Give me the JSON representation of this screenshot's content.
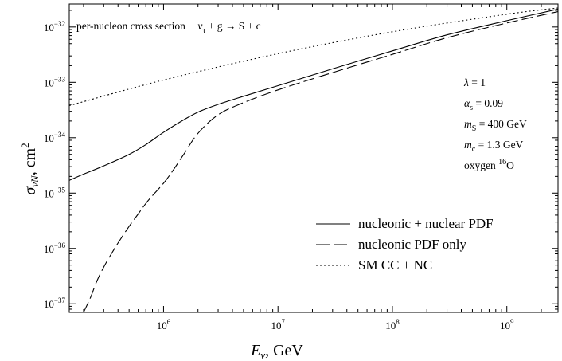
{
  "chart_data": {
    "type": "line",
    "title": "",
    "xlabel": "E_ν, GeV",
    "ylabel": "σ_νN, cm²",
    "x_scale": "log",
    "y_scale": "log",
    "xlim": [
      150000,
      2800000000
    ],
    "ylim": [
      7e-38,
      2.6e-32
    ],
    "grid": false,
    "legend_position": "lower-right",
    "x_ticks": [
      {
        "value": 1000000,
        "base": "10",
        "exp": "6"
      },
      {
        "value": 10000000,
        "base": "10",
        "exp": "7"
      },
      {
        "value": 100000000,
        "base": "10",
        "exp": "8"
      },
      {
        "value": 1000000000,
        "base": "10",
        "exp": "9"
      }
    ],
    "y_ticks": [
      {
        "value": 1e-37,
        "base": "10",
        "exp": "−37"
      },
      {
        "value": 1e-36,
        "base": "10",
        "exp": "−36"
      },
      {
        "value": 1e-35,
        "base": "10",
        "exp": "−35"
      },
      {
        "value": 1e-34,
        "base": "10",
        "exp": "−34"
      },
      {
        "value": 1e-33,
        "base": "10",
        "exp": "−33"
      },
      {
        "value": 1e-32,
        "base": "10",
        "exp": "−32"
      }
    ],
    "series": [
      {
        "name": "nucleonic + nuclear PDF",
        "style": "solid",
        "color": "#000000",
        "x": [
          150000,
          200000,
          300000,
          500000,
          700000,
          1000000,
          1500000,
          2000000,
          3000000,
          5000000,
          10000000,
          30000000,
          100000000,
          300000000,
          1000000000,
          2800000000
        ],
        "y": [
          1.7e-35,
          2.2e-35,
          3.1e-35,
          5e-35,
          7.5e-35,
          1.25e-34,
          2.1e-34,
          2.9e-34,
          4e-34,
          5.6e-34,
          8.7e-34,
          1.75e-33,
          3.7e-33,
          7.2e-33,
          1.3e-32,
          2.1e-32
        ]
      },
      {
        "name": "nucleonic PDF only",
        "style": "dashed",
        "color": "#000000",
        "x": [
          200000,
          230000,
          260000,
          300000,
          350000,
          400000,
          500000,
          600000,
          700000,
          800000,
          1000000,
          1200000,
          1500000,
          2000000,
          3000000,
          5000000,
          10000000,
          30000000,
          100000000,
          300000000,
          1000000000,
          2800000000
        ],
        "y": [
          7e-38,
          1.3e-37,
          2.5e-37,
          4.6e-37,
          8e-37,
          1.25e-36,
          2.5e-36,
          4.2e-36,
          6.5e-36,
          9e-36,
          1.5e-35,
          2.5e-35,
          5e-35,
          1.2e-34,
          2.6e-34,
          4.3e-34,
          7.3e-34,
          1.5e-33,
          3.2e-33,
          6.4e-33,
          1.18e-32,
          1.9e-32
        ]
      },
      {
        "name": "SM CC + NC",
        "style": "dotted",
        "color": "#000000",
        "x": [
          150000,
          1000000,
          10000000,
          100000000,
          1000000000,
          2800000000
        ],
        "y": [
          3.8e-34,
          1.1e-33,
          3.3e-33,
          8.2e-33,
          1.7e-32,
          2.2e-32
        ]
      }
    ],
    "annotations": {
      "top_left": {
        "prefix": "per-nucleon cross section",
        "process": "ν",
        "process_sub": "τ",
        "process_rest": " + g → S + c"
      },
      "params": [
        {
          "sym": "λ",
          "sub": "",
          "sup": "",
          "text": " = 1"
        },
        {
          "sym": "α",
          "sub": "s",
          "sup": "",
          "text": " = 0.09"
        },
        {
          "sym": "m",
          "sub": "S",
          "sup": "",
          "text": " = 400 GeV"
        },
        {
          "sym": "m",
          "sub": "c",
          "sup": "",
          "text": " = 1.3 GeV"
        },
        {
          "sym": "oxygen ",
          "sub": "",
          "sup": "16",
          "text": "O"
        }
      ]
    },
    "axis_titles": {
      "x": {
        "main": "E",
        "sub": "ν",
        "rest": ", GeV"
      },
      "y": {
        "main": "σ",
        "sub": "νN",
        "rest": ", cm",
        "sup": "2"
      }
    }
  }
}
